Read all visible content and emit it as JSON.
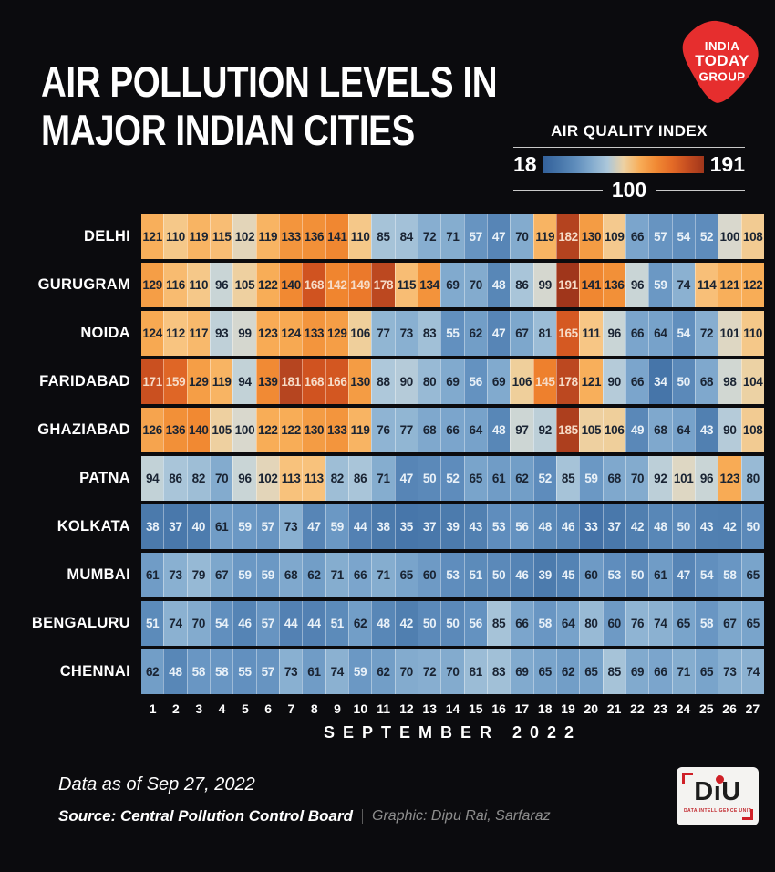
{
  "header": {
    "title_line1": "AIR POLLUTION LEVELS IN",
    "title_line2": "MAJOR INDIAN CITIES",
    "logo": {
      "line1": "INDIA",
      "line2": "TODAY",
      "line3": "GROUP",
      "color": "#e62e2e"
    }
  },
  "legend": {
    "title": "AIR QUALITY INDEX",
    "min": "18",
    "mid": "100",
    "max": "191"
  },
  "chart_data": {
    "type": "heatmap",
    "title": "AIR POLLUTION LEVELS IN MAJOR INDIAN CITIES",
    "legend_title": "AIR QUALITY INDEX",
    "xlabel": "SEPTEMBER 2022",
    "x": [
      1,
      2,
      3,
      4,
      5,
      6,
      7,
      8,
      9,
      10,
      11,
      12,
      13,
      14,
      15,
      16,
      17,
      18,
      19,
      20,
      21,
      22,
      23,
      24,
      25,
      26,
      27
    ],
    "categories": [
      "DELHI",
      "GURUGRAM",
      "NOIDA",
      "FARIDABAD",
      "GHAZIABAD",
      "PATNA",
      "KOLKATA",
      "MUMBAI",
      "BENGALURU",
      "CHENNAI"
    ],
    "series": [
      {
        "name": "DELHI",
        "values": [
          121,
          110,
          119,
          115,
          102,
          119,
          133,
          136,
          141,
          110,
          85,
          84,
          72,
          71,
          57,
          47,
          70,
          119,
          182,
          130,
          109,
          66,
          57,
          54,
          52,
          100,
          108
        ]
      },
      {
        "name": "GURUGRAM",
        "values": [
          129,
          116,
          110,
          96,
          105,
          122,
          140,
          168,
          142,
          149,
          178,
          115,
          134,
          69,
          70,
          48,
          86,
          99,
          191,
          141,
          136,
          96,
          59,
          74,
          114,
          121,
          122
        ]
      },
      {
        "name": "NOIDA",
        "values": [
          124,
          112,
          117,
          93,
          99,
          123,
          124,
          133,
          129,
          106,
          77,
          73,
          83,
          55,
          62,
          47,
          67,
          81,
          165,
          111,
          96,
          66,
          64,
          54,
          72,
          101,
          110
        ]
      },
      {
        "name": "FARIDABAD",
        "values": [
          171,
          159,
          129,
          119,
          94,
          139,
          181,
          168,
          166,
          130,
          88,
          90,
          80,
          69,
          56,
          69,
          106,
          145,
          178,
          121,
          90,
          66,
          34,
          50,
          68,
          98,
          104
        ]
      },
      {
        "name": "GHAZIABAD",
        "values": [
          126,
          136,
          140,
          105,
          100,
          122,
          122,
          130,
          133,
          119,
          76,
          77,
          68,
          66,
          64,
          48,
          97,
          92,
          185,
          105,
          106,
          49,
          68,
          64,
          43,
          90,
          108
        ]
      },
      {
        "name": "PATNA",
        "values": [
          94,
          86,
          82,
          70,
          96,
          102,
          113,
          113,
          82,
          86,
          71,
          47,
          50,
          52,
          65,
          61,
          62,
          52,
          85,
          59,
          68,
          70,
          92,
          101,
          96,
          123,
          80
        ]
      },
      {
        "name": "KOLKATA",
        "values": [
          38,
          37,
          40,
          61,
          59,
          57,
          73,
          47,
          59,
          44,
          38,
          35,
          37,
          39,
          43,
          53,
          56,
          48,
          46,
          33,
          37,
          42,
          48,
          50,
          43,
          42,
          50
        ]
      },
      {
        "name": "MUMBAI",
        "values": [
          61,
          73,
          79,
          67,
          59,
          59,
          68,
          62,
          71,
          66,
          71,
          65,
          60,
          53,
          51,
          50,
          46,
          39,
          45,
          60,
          53,
          50,
          61,
          47,
          54,
          58,
          65
        ]
      },
      {
        "name": "BENGALURU",
        "values": [
          51,
          74,
          70,
          54,
          46,
          57,
          44,
          44,
          51,
          62,
          48,
          42,
          50,
          50,
          56,
          85,
          66,
          58,
          64,
          80,
          60,
          76,
          74,
          65,
          58,
          67,
          65
        ]
      },
      {
        "name": "CHENNAI",
        "values": [
          62,
          48,
          58,
          58,
          55,
          57,
          73,
          61,
          74,
          59,
          62,
          70,
          72,
          70,
          81,
          83,
          69,
          65,
          62,
          65,
          85,
          69,
          66,
          71,
          65,
          73,
          74
        ]
      }
    ],
    "colorscale": {
      "min": 18,
      "mid": 100,
      "max": 191,
      "anchors": [
        [
          18,
          "#33619b"
        ],
        [
          40,
          "#4d7cae"
        ],
        [
          55,
          "#6290bf"
        ],
        [
          65,
          "#79a4cb"
        ],
        [
          78,
          "#93b7d4"
        ],
        [
          88,
          "#aec8da"
        ],
        [
          96,
          "#c9d5d6"
        ],
        [
          100,
          "#d9d8cd"
        ],
        [
          104,
          "#ecd2a4"
        ],
        [
          112,
          "#f8c480"
        ],
        [
          122,
          "#f8ad57"
        ],
        [
          133,
          "#f3953d"
        ],
        [
          142,
          "#f0852f"
        ],
        [
          155,
          "#e66e28"
        ],
        [
          168,
          "#d05320"
        ],
        [
          180,
          "#b84620"
        ],
        [
          191,
          "#a0361b"
        ]
      ]
    },
    "text_rule": {
      "light_low_max": 59,
      "light_high_min": 142,
      "dark": "#1a2433",
      "light_cool": "#e9f1f8",
      "light_warm": "#f6dcc8"
    }
  },
  "footer": {
    "data_asof": "Data as of Sep 27, 2022",
    "source": "Source: Central Pollution Control Board",
    "graphic": "Graphic: Dipu Rai, Sarfaraz",
    "diu_word": "DıU",
    "diu_sub": "DATA INTELLIGENCE UNIT"
  }
}
